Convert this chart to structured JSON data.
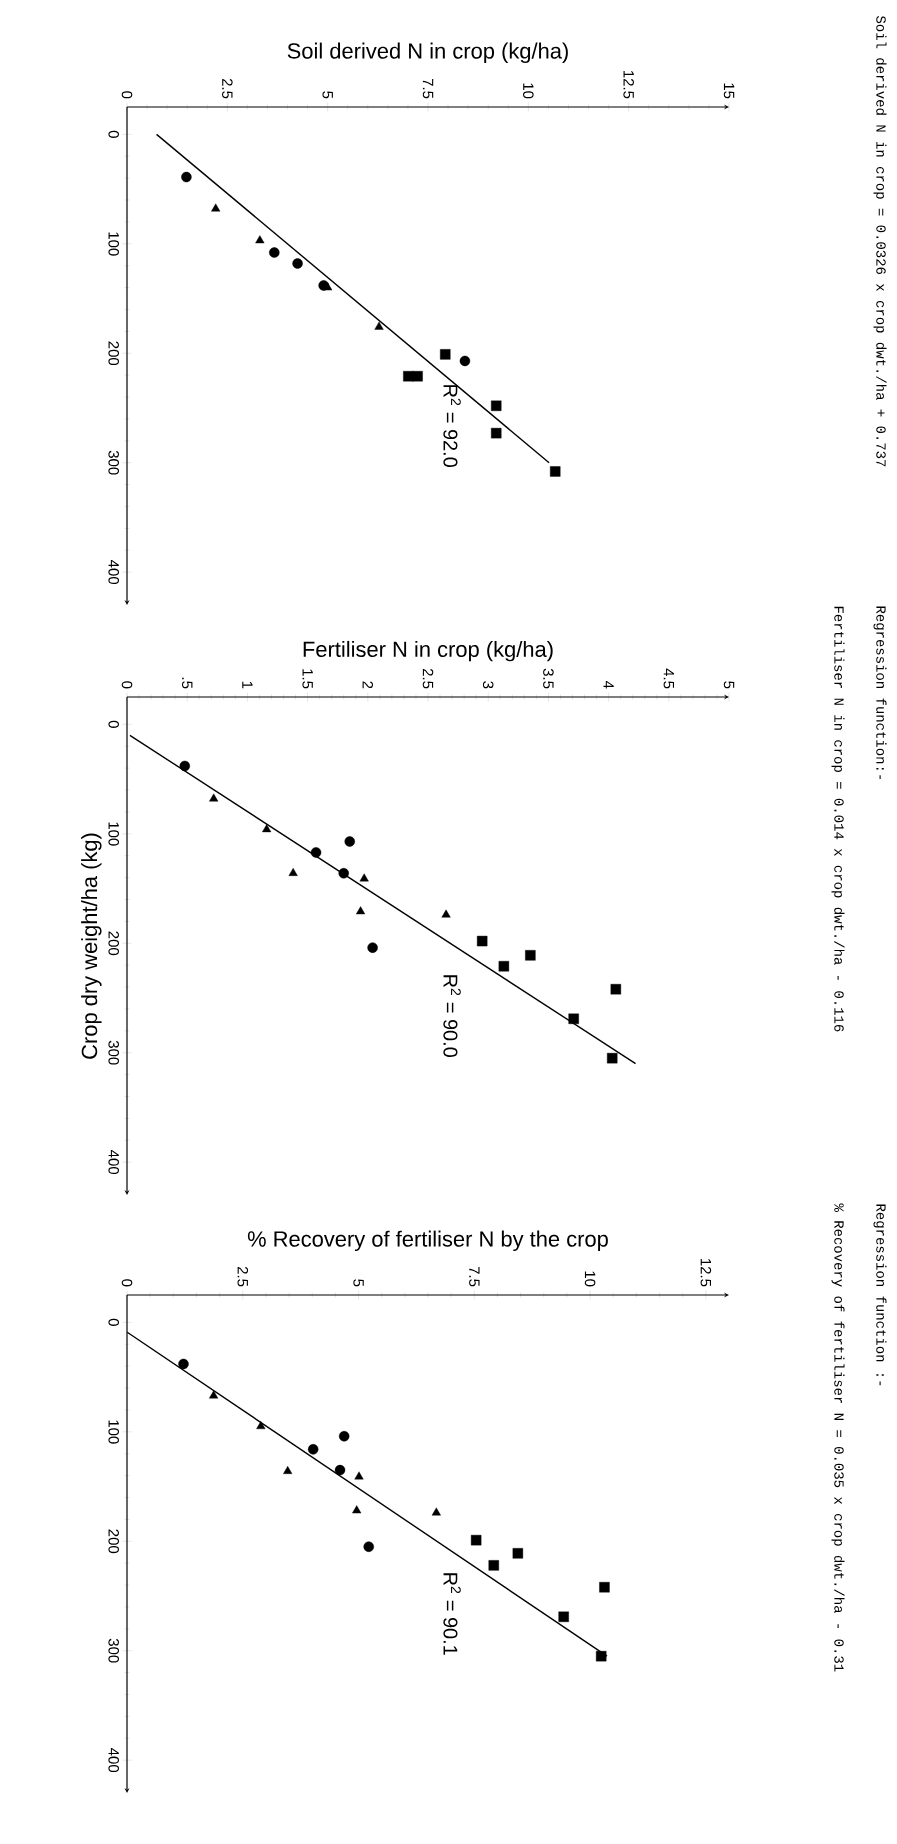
{
  "chart_data": [
    {
      "type": "scatter",
      "xlabel": "Soil derived N in crop (kg/ha)",
      "xlim": [
        0,
        15
      ],
      "xticks": [
        0,
        2.5,
        5,
        7.5,
        10,
        12.5,
        15
      ],
      "ylim": [
        430,
        -25
      ],
      "yticks": [
        0,
        100,
        200,
        300,
        400
      ],
      "annotations": [
        "Soil derived N in crop = 0.0326 x crop dwt./ha + 0.737",
        "R$^{2}$ = 92.0"
      ],
      "series": [
        {
          "marker": "circle",
          "color": "#000000",
          "x": [
            1.48,
            3.67,
            4.25,
            4.9,
            8.42
          ],
          "values": [
            39,
            108,
            118,
            138,
            207
          ]
        },
        {
          "marker": "triangle",
          "color": "#000000",
          "x": [
            2.21,
            3.31,
            5.0,
            6.28
          ],
          "values": [
            68,
            97,
            140,
            176
          ]
        },
        {
          "marker": "square",
          "color": "#000000",
          "x": [
            7.93,
            7.01,
            7.24,
            9.2,
            9.2,
            10.67
          ],
          "values": [
            201,
            221,
            221,
            248,
            273,
            308
          ]
        },
        {
          "type": "line",
          "marker": "none",
          "color": "#000000",
          "x": [
            0.737,
            10.517
          ],
          "values": [
            0,
            300
          ]
        }
      ]
    },
    {
      "type": "scatter",
      "xlabel": "Fertiliser N in crop (kg/ha)",
      "ylabel": "Crop dry weight/ha (kg)",
      "xlim": [
        0,
        5
      ],
      "xticks": [
        0,
        {
          "value": 0.5,
          "label": ".5"
        },
        1,
        1.5,
        2,
        2.5,
        3,
        3.5,
        4,
        4.5,
        5
      ],
      "ylim": [
        430,
        -25
      ],
      "yticks": [
        0,
        100,
        200,
        300,
        400
      ],
      "annotations": [
        "Regression function:-",
        "Fertiliser N in crop = 0.014 x crop dwt./ha - 0.116",
        "R$^{2}$ = 90.0"
      ],
      "series": [
        {
          "marker": "circle",
          "color": "#000000",
          "x": [
            0.48,
            1.85,
            1.57,
            1.8,
            2.04
          ],
          "values": [
            38,
            107,
            117,
            136,
            204
          ]
        },
        {
          "marker": "triangle",
          "color": "#000000",
          "x": [
            0.72,
            1.16,
            1.38,
            1.97,
            1.94,
            2.65
          ],
          "values": [
            68,
            96,
            136,
            141,
            171,
            174
          ]
        },
        {
          "marker": "square",
          "color": "#000000",
          "x": [
            2.95,
            3.35,
            3.13,
            4.06,
            3.71,
            4.03
          ],
          "values": [
            198,
            211,
            221,
            242,
            269,
            305
          ]
        },
        {
          "type": "line",
          "marker": "none",
          "color": "#000000",
          "x": [
            0.024,
            4.224
          ],
          "values": [
            10,
            310
          ]
        }
      ]
    },
    {
      "type": "scatter",
      "xlabel": "% Recovery of fertiliser N by the crop",
      "xlim": [
        0,
        13
      ],
      "xticks": [
        0,
        2.5,
        5,
        7.5,
        10,
        12.5
      ],
      "ylim": [
        430,
        -25
      ],
      "yticks": [
        0,
        100,
        200,
        300,
        400
      ],
      "annotations": [
        "Regression function :-",
        "% Recovery of fertiliser N = 0.035 x crop dwt./ha - 0.31",
        "R$^{2}$ = 90.1"
      ],
      "series": [
        {
          "marker": "circle",
          "color": "#000000",
          "x": [
            1.22,
            4.69,
            4.02,
            4.6,
            5.22
          ],
          "values": [
            38,
            104,
            116,
            135,
            205
          ]
        },
        {
          "marker": "triangle",
          "color": "#000000",
          "x": [
            1.87,
            2.89,
            3.47,
            5.01,
            4.96,
            6.68
          ],
          "values": [
            67,
            95,
            136,
            141,
            172,
            174
          ]
        },
        {
          "marker": "square",
          "color": "#000000",
          "x": [
            7.54,
            8.44,
            7.92,
            10.31,
            9.43,
            10.24
          ],
          "values": [
            199,
            211,
            222,
            242,
            269,
            305
          ]
        },
        {
          "type": "line",
          "marker": "none",
          "color": "#000000",
          "x": [
            0.005,
            10.365
          ],
          "values": [
            9,
            305
          ]
        }
      ]
    }
  ]
}
